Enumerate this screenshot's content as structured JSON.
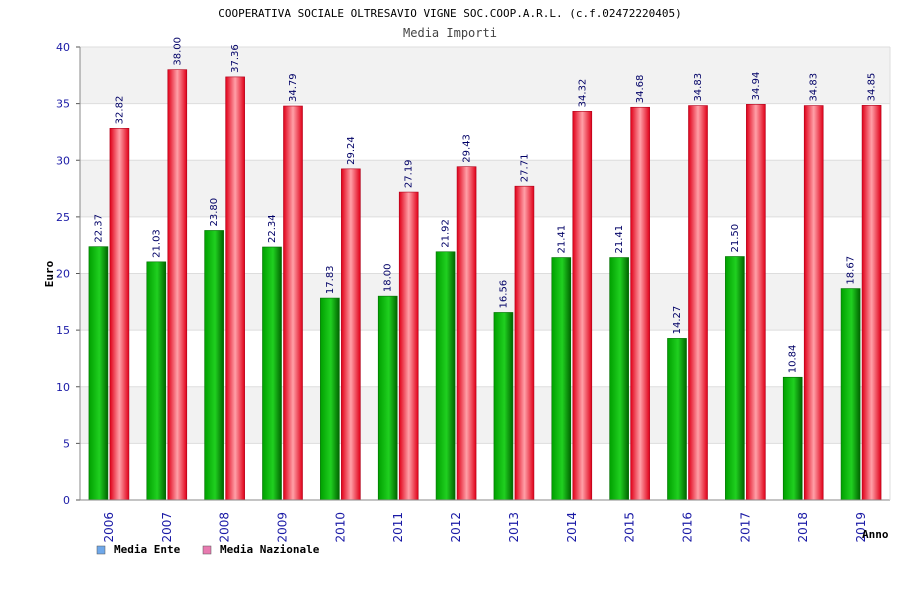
{
  "chart_data": {
    "type": "bar",
    "title": "COOPERATIVA SOCIALE OLTRESAVIO VIGNE SOC.COOP.A.R.L. (c.f.02472220405)",
    "subtitle": "Media Importi",
    "xlabel": "Anno",
    "ylabel": "Euro",
    "ylim": [
      0,
      40
    ],
    "yticks": [
      0,
      5,
      10,
      15,
      20,
      25,
      30,
      35,
      40
    ],
    "categories": [
      "2006",
      "2007",
      "2008",
      "2009",
      "2010",
      "2011",
      "2012",
      "2013",
      "2014",
      "2015",
      "2016",
      "2017",
      "2018",
      "2019"
    ],
    "series": [
      {
        "name": "Media Ente",
        "values": [
          22.37,
          21.03,
          23.8,
          22.34,
          17.83,
          18.0,
          21.92,
          16.56,
          21.41,
          21.41,
          14.27,
          21.5,
          10.84,
          18.67
        ],
        "labels": [
          "22.37",
          "21.03",
          "23.80",
          "22.34",
          "17.83",
          "18.00",
          "21.92",
          "16.56",
          "21.41",
          "21.41",
          "14.27",
          "21.50",
          "10.84",
          "18.67"
        ],
        "color": "#00b000",
        "legend_color": "#6fa8ea"
      },
      {
        "name": "Media Nazionale",
        "values": [
          32.82,
          38.0,
          37.36,
          34.79,
          29.24,
          27.19,
          29.43,
          27.71,
          34.32,
          34.68,
          34.83,
          34.94,
          34.83,
          34.85
        ],
        "labels": [
          "32.82",
          "38.00",
          "37.36",
          "34.79",
          "29.24",
          "27.19",
          "29.43",
          "27.71",
          "34.32",
          "34.68",
          "34.83",
          "34.94",
          "34.83",
          "34.85"
        ],
        "color": "#e8102a",
        "legend_color": "#e87ab0"
      }
    ],
    "grid": true,
    "legend_position": "bottom-left"
  }
}
